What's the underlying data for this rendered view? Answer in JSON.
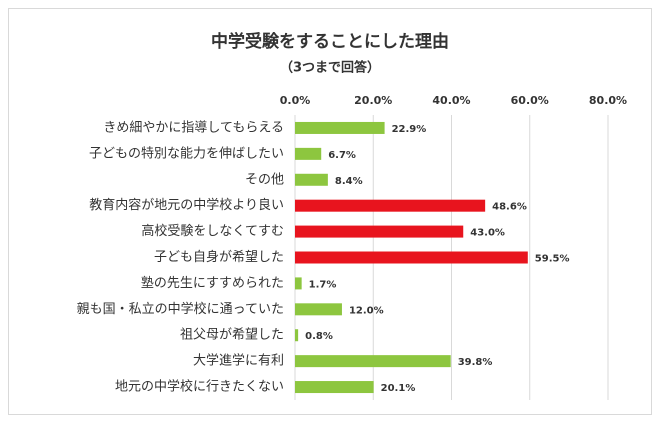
{
  "chart_data": {
    "type": "hbar",
    "title": "中学受験をすることにした理由",
    "subtitle": "（3つまで回答）",
    "categories": [
      "きめ細やかに指導してもらえる",
      "子どもの特別な能力を伸ばしたい",
      "その他",
      "教育内容が地元の中学校より良い",
      "高校受験をしなくてすむ",
      "子ども自身が希望した",
      "塾の先生にすすめられた",
      "親も国・私立の中学校に通っていた",
      "祖父母が希望した",
      "大学進学に有利",
      "地元の中学校に行きたくない"
    ],
    "values": [
      22.9,
      6.7,
      8.4,
      48.6,
      43.0,
      59.5,
      1.7,
      12.0,
      0.8,
      39.8,
      20.1
    ],
    "value_labels": [
      "22.9%",
      "6.7%",
      "8.4%",
      "48.6%",
      "43.0%",
      "59.5%",
      "1.7%",
      "12.0%",
      "0.8%",
      "39.8%",
      "20.1%"
    ],
    "colors": [
      "#8dc63f",
      "#8dc63f",
      "#8dc63f",
      "#e8141e",
      "#e8141e",
      "#e8141e",
      "#8dc63f",
      "#8dc63f",
      "#8dc63f",
      "#8dc63f",
      "#8dc63f"
    ],
    "xlim": [
      0,
      80
    ],
    "xticks": [
      {
        "value": 0,
        "label": "0.0%"
      },
      {
        "value": 20,
        "label": "20.0%"
      },
      {
        "value": 40,
        "label": "40.0%"
      },
      {
        "value": 60,
        "label": "60.0%"
      },
      {
        "value": 80,
        "label": "80.0%"
      }
    ],
    "grid": true
  }
}
